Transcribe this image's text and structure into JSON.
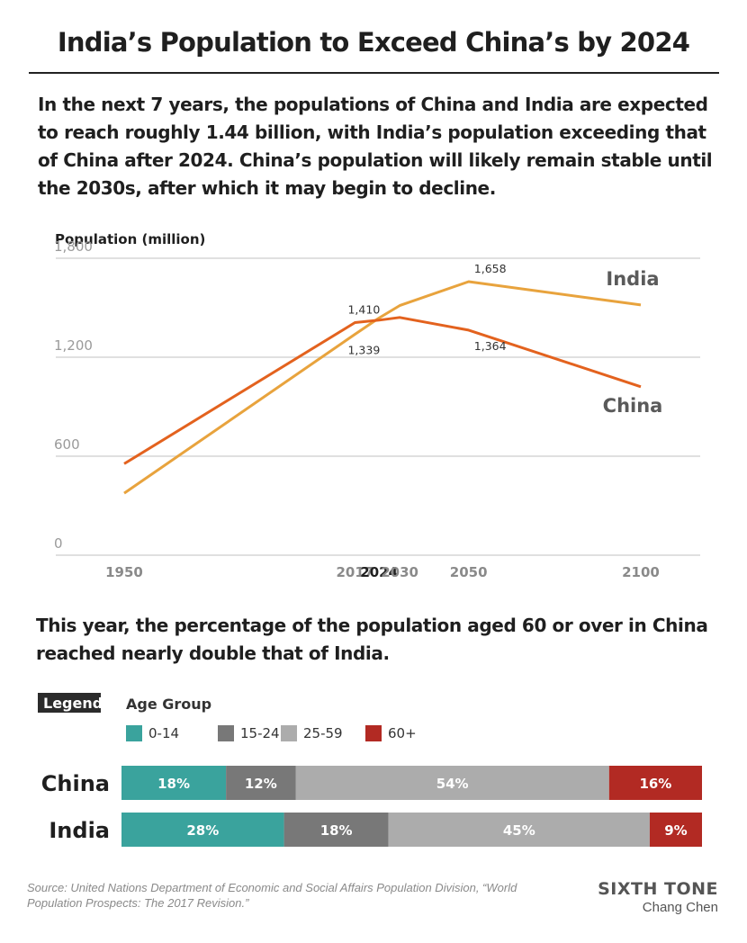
{
  "title": "India’s Population to Exceed China’s by 2024",
  "subtitle": "In the next 7 years, the populations of China and India are expected to reach roughly 1.44 billion, with India’s population exceeding that of China after 2024. China’s population will likely remain stable until the 2030s, after which it may begin to decline.",
  "chart_data": [
    {
      "type": "line",
      "ylabel": "Population (million)",
      "ylim": [
        0,
        1800
      ],
      "yticks": [
        0,
        600,
        1200,
        1800
      ],
      "ytick_labels": [
        "0",
        "600",
        "1,200",
        "1,800"
      ],
      "xticks": [
        1950,
        2017,
        2024,
        2030,
        2050,
        2100
      ],
      "xtick_labels": [
        "1950",
        "2017",
        "2024",
        "2030",
        "2050",
        "2100"
      ],
      "highlight_tick": "2024",
      "grid": true,
      "series": [
        {
          "name": "India",
          "color": "#e8a33d",
          "x": [
            1950,
            2017,
            2024,
            2030,
            2050,
            2100
          ],
          "y": [
            376,
            1339,
            1438,
            1513,
            1658,
            1517
          ],
          "labels": [
            {
              "x": 2017,
              "text": "1,339"
            },
            {
              "x": 2050,
              "text": "1,658"
            }
          ]
        },
        {
          "name": "China",
          "color": "#e3621e",
          "x": [
            1950,
            2017,
            2024,
            2030,
            2050,
            2100
          ],
          "y": [
            554,
            1410,
            1425,
            1441,
            1364,
            1021
          ],
          "labels": [
            {
              "x": 2017,
              "text": "1,410"
            },
            {
              "x": 2050,
              "text": "1,364"
            }
          ]
        }
      ]
    },
    {
      "type": "bar",
      "orientation": "horizontal-stacked",
      "legend_title": "Legend",
      "legend_group_title": "Age Group",
      "categories": [
        "China",
        "India"
      ],
      "series": [
        {
          "name": "0-14",
          "color": "#3aa39d",
          "values": [
            18,
            28
          ]
        },
        {
          "name": "15-24",
          "color": "#787878",
          "values": [
            12,
            18
          ]
        },
        {
          "name": "25-59",
          "color": "#acacac",
          "values": [
            54,
            45
          ]
        },
        {
          "name": "60+",
          "color": "#b22a23",
          "values": [
            16,
            9
          ]
        }
      ]
    }
  ],
  "lede2": "This year, the percentage of the population aged 60 or over in China reached nearly double that of India.",
  "footer": {
    "source": "Source:  United Nations Department of Economic and Social Affairs Population Division, “World Population Prospects: The 2017 Revision.”",
    "brand": "SIXTH TONE",
    "author": "Chang Chen"
  }
}
